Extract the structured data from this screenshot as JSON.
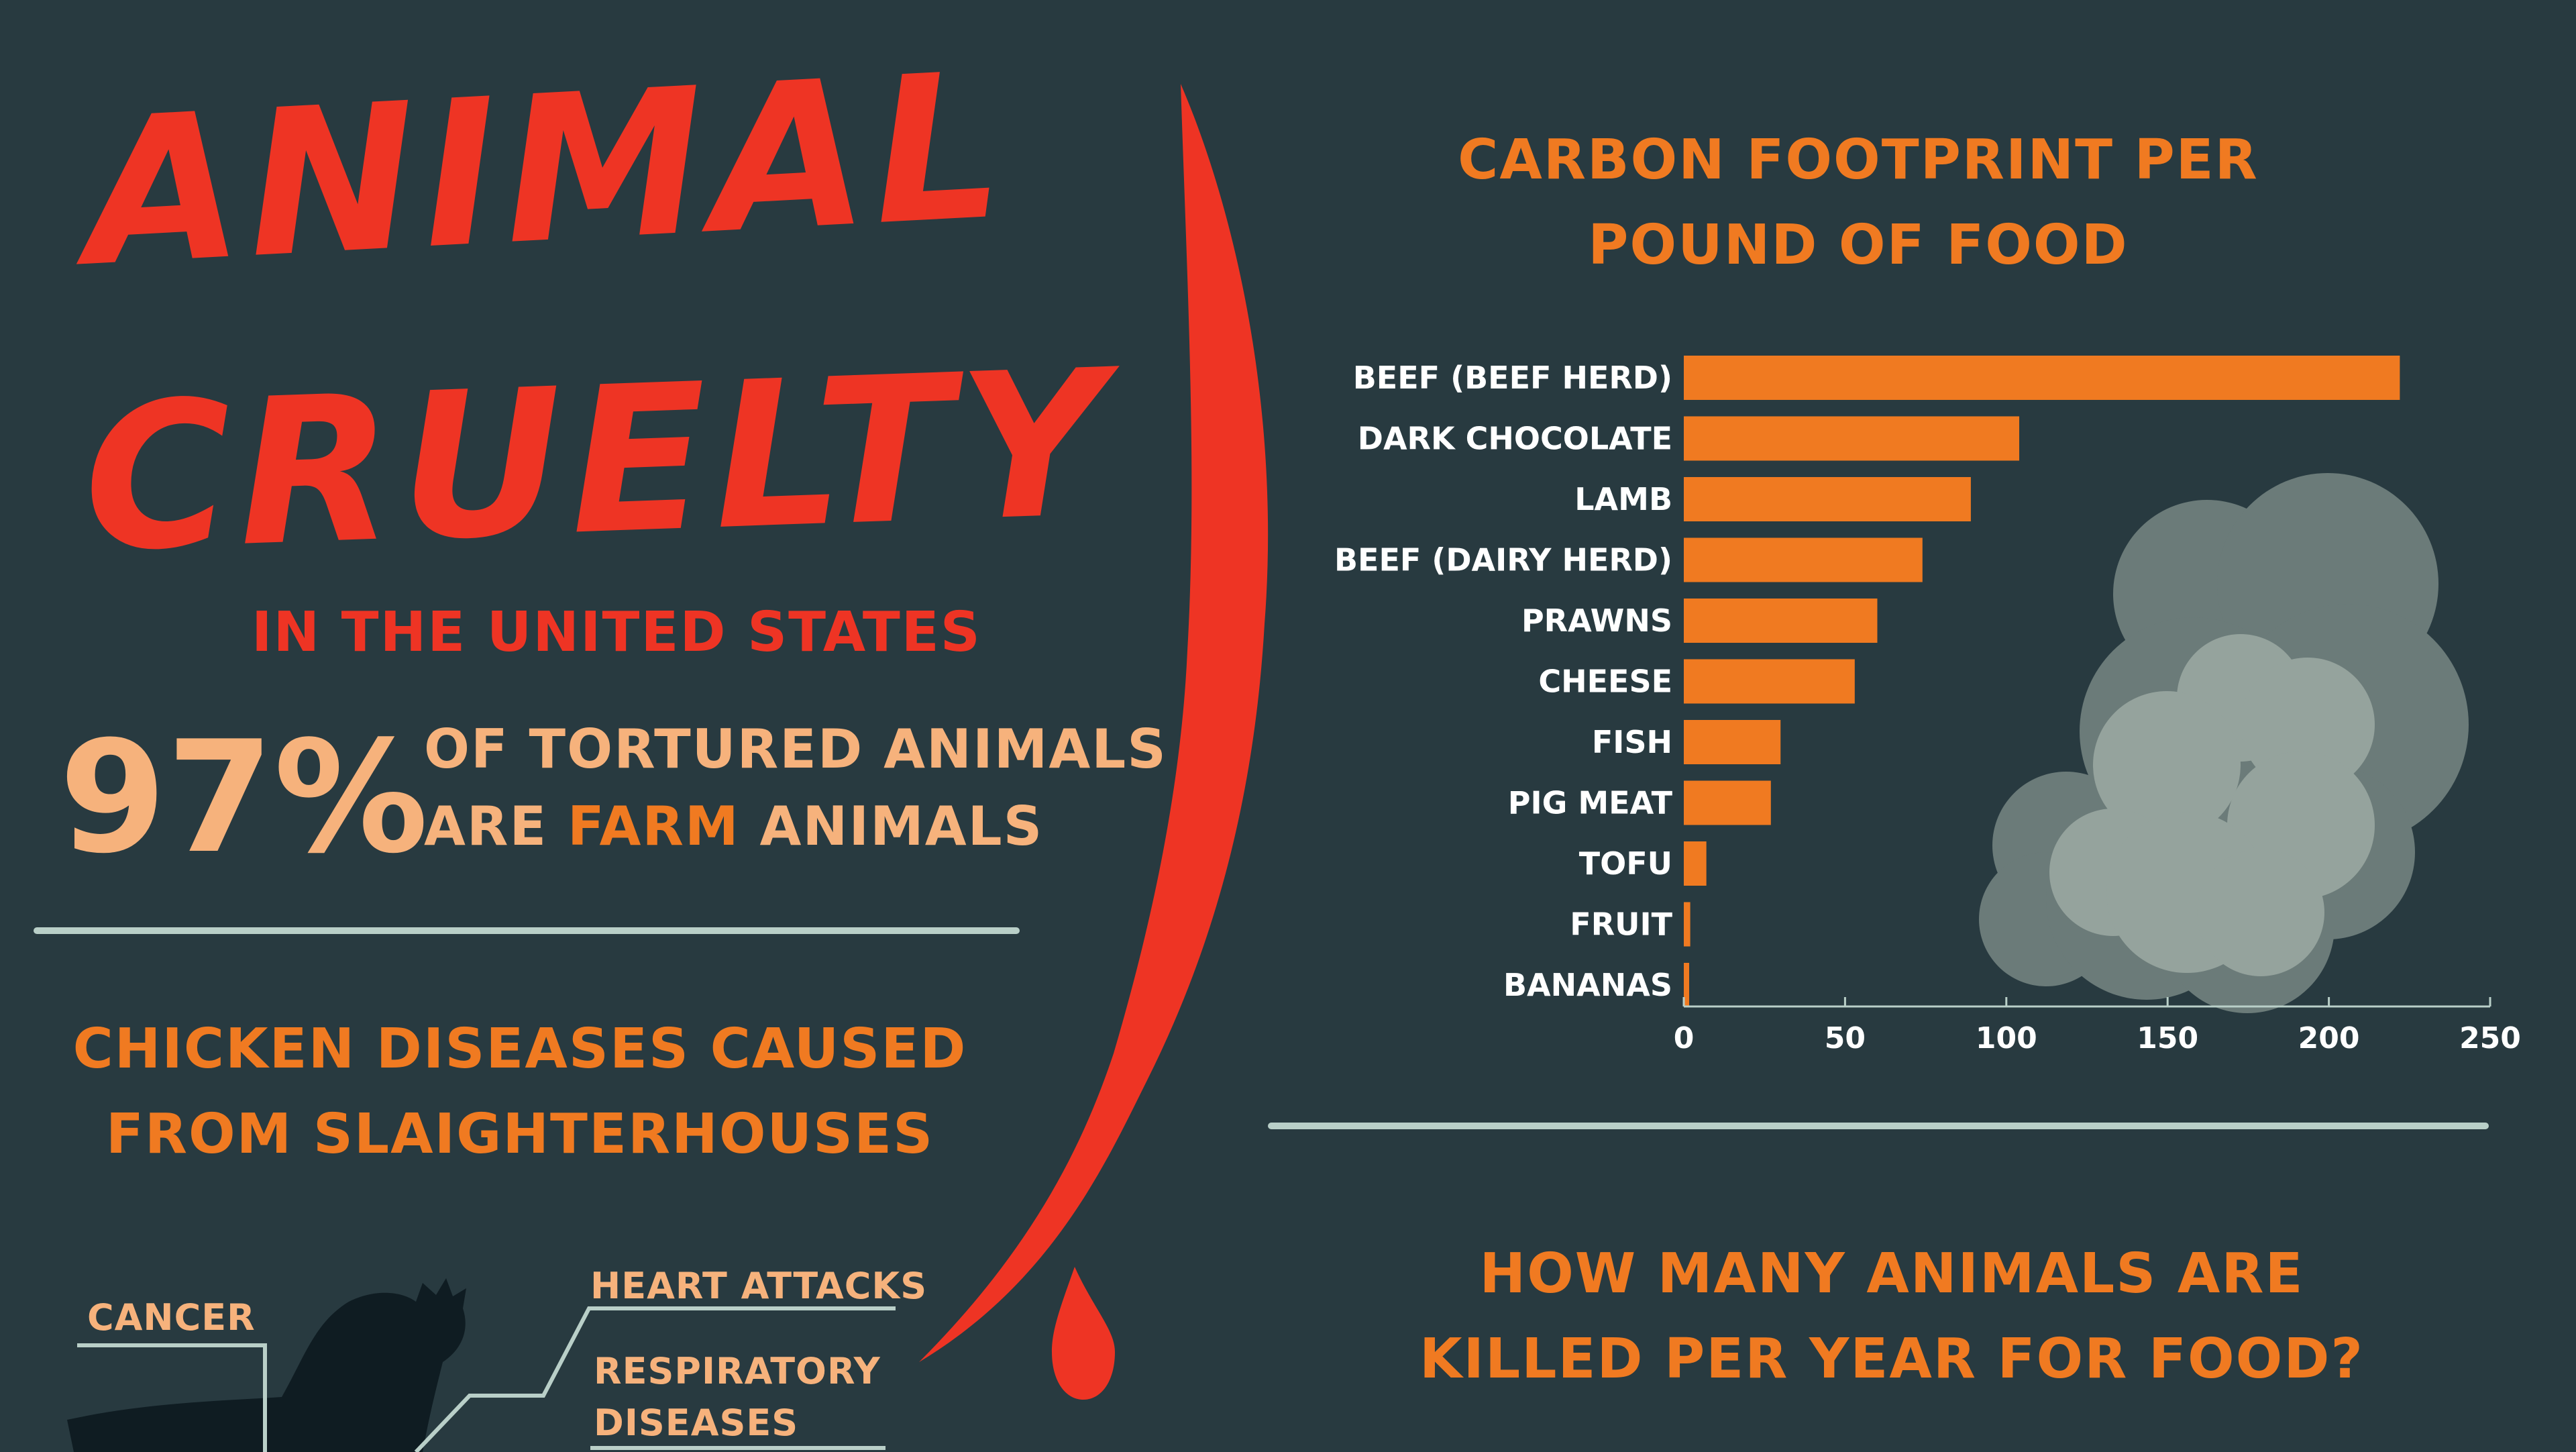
{
  "header": {
    "title_line1": "ANIMAL",
    "title_line2": "CRUELTY",
    "subtitle": "IN THE UNITED STATES"
  },
  "stat": {
    "number": "97%",
    "line1": "OF TORTURED ANIMALS",
    "line2_prefix": "ARE ",
    "line2_highlight": "FARM",
    "line2_suffix": " ANIMALS"
  },
  "diseases": {
    "title_line1": "CHICKEN DISEASES CAUSED",
    "title_line2": "FROM SLAIGHTERHOUSES",
    "callouts": [
      "CANCER",
      "HEART ATTACKS",
      "RESPIRATORY",
      "DISEASES"
    ]
  },
  "killed": {
    "title_line1": "HOW MANY ANIMALS ARE",
    "title_line2": "KILLED PER YEAR FOR FOOD?"
  },
  "colors": {
    "background": "#283a40",
    "red": "#ee3424",
    "orange": "#f07a21",
    "peach": "#f6b27c",
    "divider": "#b9cfc8",
    "smoke_dark": "#6b7b79",
    "smoke_light": "#95a39d"
  },
  "chart_data": {
    "type": "bar",
    "orientation": "horizontal",
    "title_line1": "CARBON FOOTPRINT PER",
    "title_line2": "POUND OF FOOD",
    "categories": [
      "BEEF (BEEF HERD)",
      "DARK CHOCOLATE",
      "LAMB",
      "BEEF (DAIRY HERD)",
      "PRAWNS",
      "CHEESE",
      "FISH",
      "PIG MEAT",
      "TOFU",
      "FRUIT",
      "BANANAS"
    ],
    "values": [
      222,
      104,
      89,
      74,
      60,
      53,
      30,
      27,
      7,
      2,
      1.5
    ],
    "xlim": [
      0,
      250
    ],
    "xticks": [
      "0",
      "50",
      "100",
      "150",
      "200",
      "250"
    ],
    "bar_color": "#f07a21",
    "grid": false
  }
}
